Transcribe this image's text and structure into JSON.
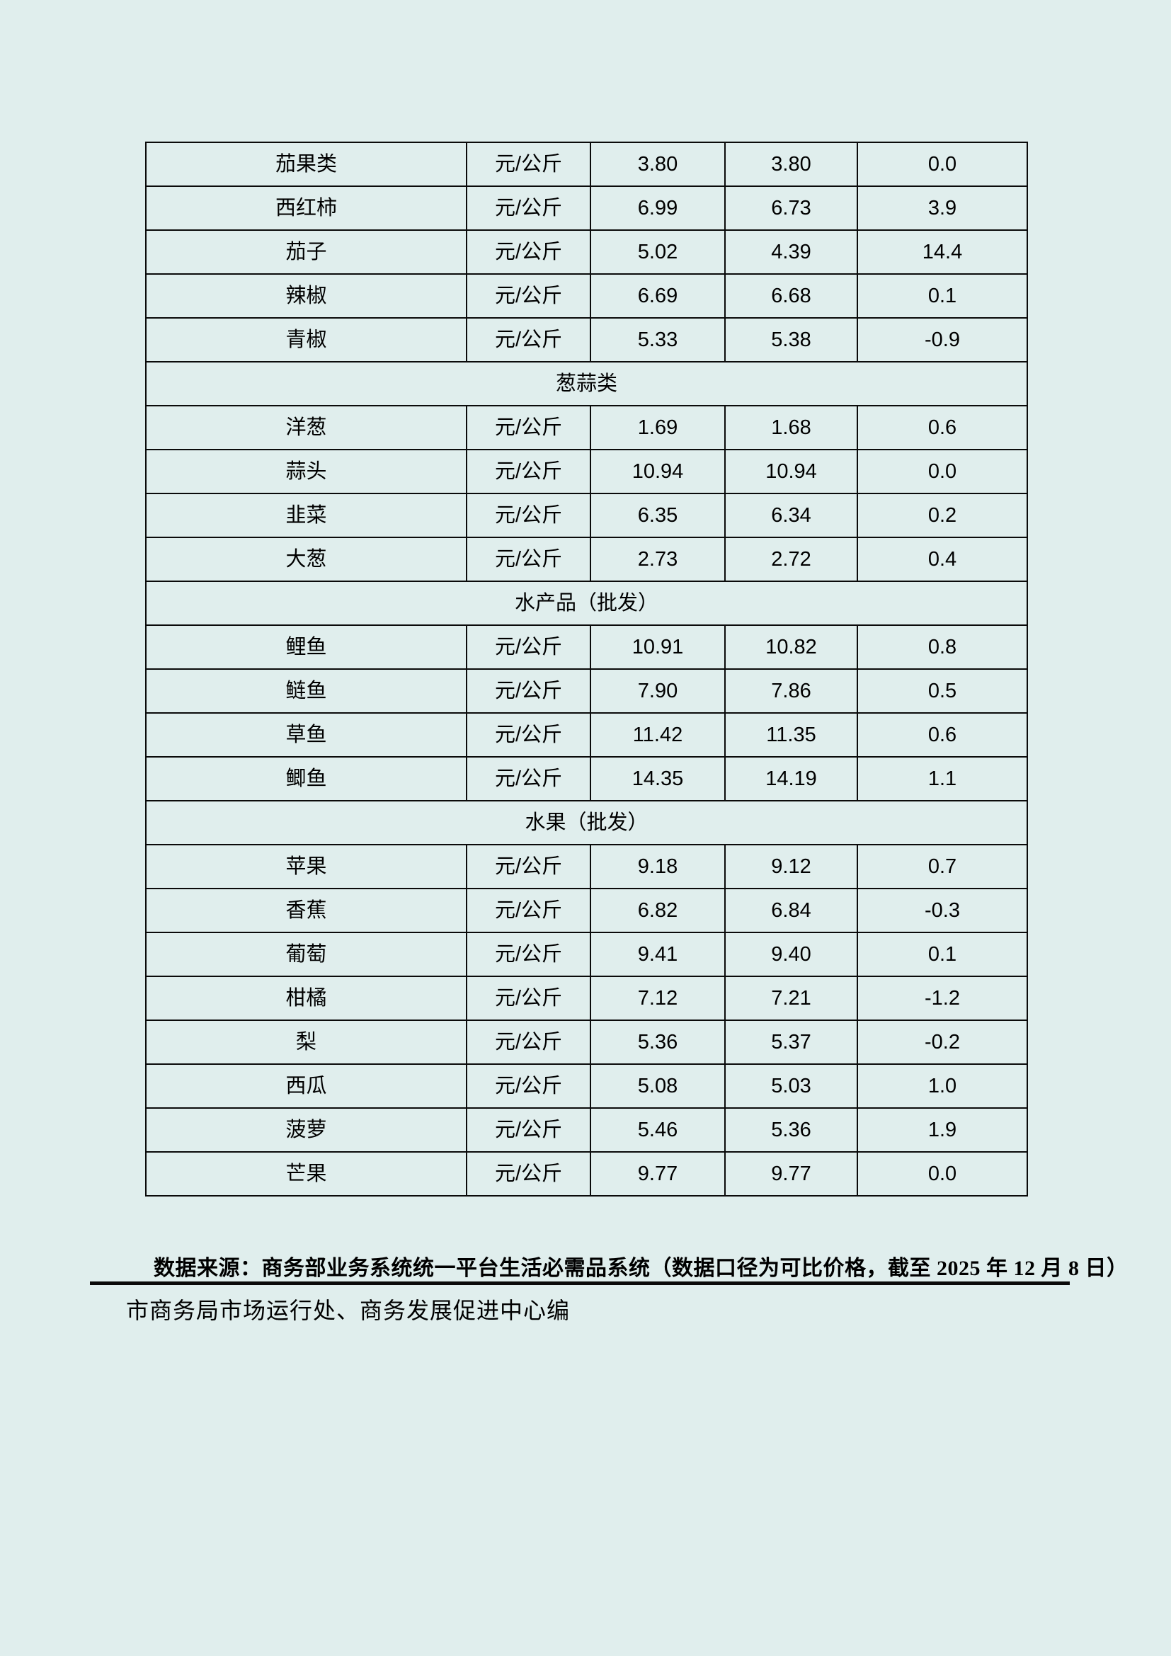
{
  "page": {
    "background_color": "#e0eeed",
    "border_color": "#0a0a0a",
    "text_color": "#000000"
  },
  "table": {
    "rows": [
      {
        "type": "item",
        "name": "茄果类",
        "unit": "元/公斤",
        "today": "3.80",
        "prev": "3.80",
        "change": "0.0"
      },
      {
        "type": "item",
        "name": "西红柿",
        "unit": "元/公斤",
        "today": "6.99",
        "prev": "6.73",
        "change": "3.9"
      },
      {
        "type": "item",
        "name": "茄子",
        "unit": "元/公斤",
        "today": "5.02",
        "prev": "4.39",
        "change": "14.4"
      },
      {
        "type": "item",
        "name": "辣椒",
        "unit": "元/公斤",
        "today": "6.69",
        "prev": "6.68",
        "change": "0.1"
      },
      {
        "type": "item",
        "name": "青椒",
        "unit": "元/公斤",
        "today": "5.33",
        "prev": "5.38",
        "change": "-0.9"
      },
      {
        "type": "section",
        "title": "葱蒜类"
      },
      {
        "type": "item",
        "name": "洋葱",
        "unit": "元/公斤",
        "today": "1.69",
        "prev": "1.68",
        "change": "0.6"
      },
      {
        "type": "item",
        "name": "蒜头",
        "unit": "元/公斤",
        "today": "10.94",
        "prev": "10.94",
        "change": "0.0"
      },
      {
        "type": "item",
        "name": "韭菜",
        "unit": "元/公斤",
        "today": "6.35",
        "prev": "6.34",
        "change": "0.2"
      },
      {
        "type": "item",
        "name": "大葱",
        "unit": "元/公斤",
        "today": "2.73",
        "prev": "2.72",
        "change": "0.4"
      },
      {
        "type": "section",
        "title": "水产品（批发）"
      },
      {
        "type": "item",
        "name": "鲤鱼",
        "unit": "元/公斤",
        "today": "10.91",
        "prev": "10.82",
        "change": "0.8"
      },
      {
        "type": "item",
        "name": "鲢鱼",
        "unit": "元/公斤",
        "today": "7.90",
        "prev": "7.86",
        "change": "0.5"
      },
      {
        "type": "item",
        "name": "草鱼",
        "unit": "元/公斤",
        "today": "11.42",
        "prev": "11.35",
        "change": "0.6"
      },
      {
        "type": "item",
        "name": "鲫鱼",
        "unit": "元/公斤",
        "today": "14.35",
        "prev": "14.19",
        "change": "1.1"
      },
      {
        "type": "section",
        "title": "水果（批发）"
      },
      {
        "type": "item",
        "name": "苹果",
        "unit": "元/公斤",
        "today": "9.18",
        "prev": "9.12",
        "change": "0.7"
      },
      {
        "type": "item",
        "name": "香蕉",
        "unit": "元/公斤",
        "today": "6.82",
        "prev": "6.84",
        "change": "-0.3"
      },
      {
        "type": "item",
        "name": "葡萄",
        "unit": "元/公斤",
        "today": "9.41",
        "prev": "9.40",
        "change": "0.1"
      },
      {
        "type": "item",
        "name": "柑橘",
        "unit": "元/公斤",
        "today": "7.12",
        "prev": "7.21",
        "change": "-1.2"
      },
      {
        "type": "item",
        "name": "梨",
        "unit": "元/公斤",
        "today": "5.36",
        "prev": "5.37",
        "change": "-0.2"
      },
      {
        "type": "item",
        "name": "西瓜",
        "unit": "元/公斤",
        "today": "5.08",
        "prev": "5.03",
        "change": "1.0"
      },
      {
        "type": "item",
        "name": "菠萝",
        "unit": "元/公斤",
        "today": "5.46",
        "prev": "5.36",
        "change": "1.9"
      },
      {
        "type": "item",
        "name": "芒果",
        "unit": "元/公斤",
        "today": "9.77",
        "prev": "9.77",
        "change": "0.0"
      }
    ]
  },
  "footer": {
    "source_note": "数据来源：商务部业务系统统一平台生活必需品系统（数据口径为可比价格，截至 2025 年 12 月 8 日）",
    "editor_note": "市商务局市场运行处、商务发展促进中心编"
  }
}
